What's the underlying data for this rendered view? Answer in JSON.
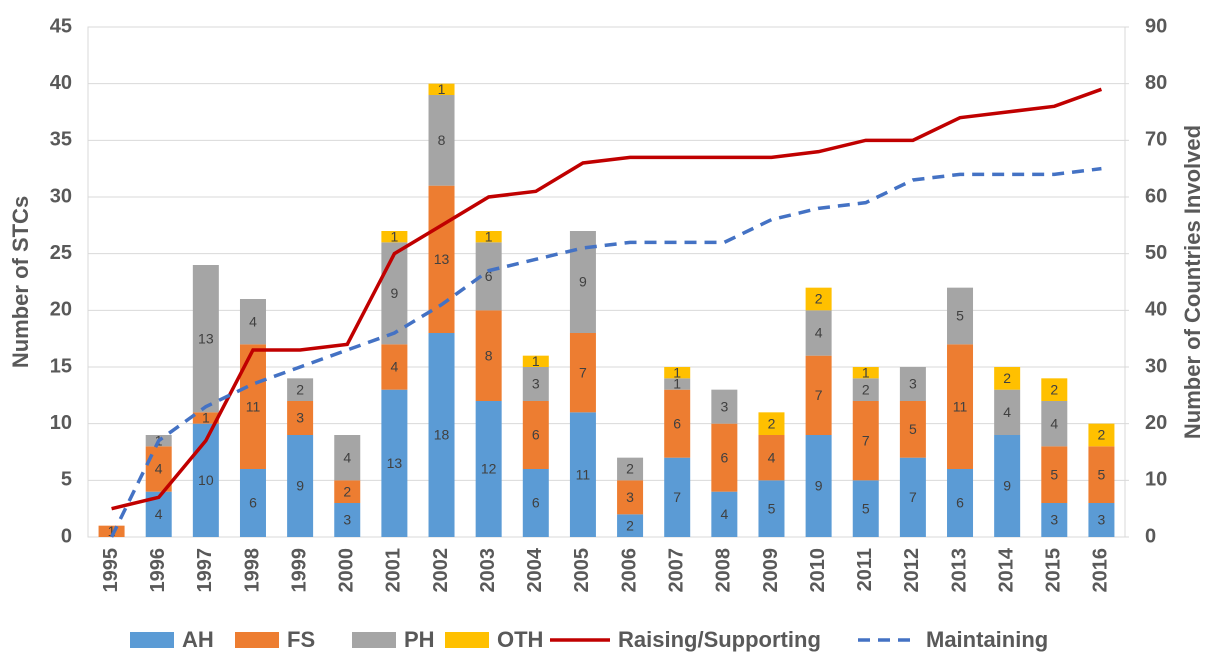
{
  "chart_data": {
    "type": "bar",
    "stacked": true,
    "categories": [
      "1995",
      "1996",
      "1997",
      "1998",
      "1999",
      "2000",
      "2001",
      "2002",
      "2003",
      "2004",
      "2005",
      "2006",
      "2007",
      "2008",
      "2009",
      "2010",
      "2011",
      "2012",
      "2013",
      "2014",
      "2015",
      "2016"
    ],
    "ylabel": "Number of STCs",
    "y2label": "Number of Countries Involved",
    "ylim": [
      0,
      45
    ],
    "yticks": [
      0,
      5,
      10,
      15,
      20,
      25,
      30,
      35,
      40,
      45
    ],
    "y2lim": [
      0,
      90
    ],
    "y2ticks": [
      0,
      10,
      20,
      30,
      40,
      50,
      60,
      70,
      80,
      90
    ],
    "legend": "bottom",
    "series": [
      {
        "name": "AH",
        "color": "#5b9bd5",
        "values": [
          null,
          4,
          10,
          6,
          9,
          3,
          13,
          18,
          12,
          6,
          11,
          2,
          7,
          4,
          5,
          9,
          5,
          7,
          6,
          9,
          3,
          3
        ]
      },
      {
        "name": "FS",
        "color": "#ed7d31",
        "values": [
          1,
          4,
          1,
          11,
          3,
          2,
          4,
          13,
          8,
          6,
          7,
          3,
          6,
          6,
          4,
          7,
          7,
          5,
          11,
          null,
          5,
          5
        ]
      },
      {
        "name": "PH",
        "color": "#a5a5a5",
        "values": [
          null,
          1,
          13,
          4,
          2,
          4,
          9,
          8,
          6,
          3,
          9,
          2,
          1,
          3,
          null,
          4,
          2,
          3,
          5,
          4,
          4,
          null
        ]
      },
      {
        "name": "OTH",
        "color": "#ffc000",
        "values": [
          null,
          null,
          null,
          null,
          null,
          null,
          1,
          1,
          1,
          1,
          null,
          null,
          1,
          null,
          2,
          2,
          1,
          null,
          null,
          2,
          2,
          2
        ]
      },
      {
        "name": "Raising/Supporting",
        "type": "line",
        "axis": "y2",
        "color": "#c00000",
        "dashed": false,
        "values": [
          5,
          7,
          17,
          33,
          33,
          34,
          50,
          55,
          60,
          61,
          66,
          67,
          67,
          67,
          67,
          68,
          70,
          70,
          74,
          75,
          76,
          79
        ]
      },
      {
        "name": "Maintaining",
        "type": "line",
        "axis": "y2",
        "color": "#4472c4",
        "dashed": true,
        "values": [
          0,
          17,
          23,
          27,
          30,
          33,
          36,
          41,
          47,
          49,
          51,
          52,
          52,
          52,
          56,
          58,
          59,
          63,
          64,
          64,
          64,
          65
        ]
      }
    ]
  }
}
